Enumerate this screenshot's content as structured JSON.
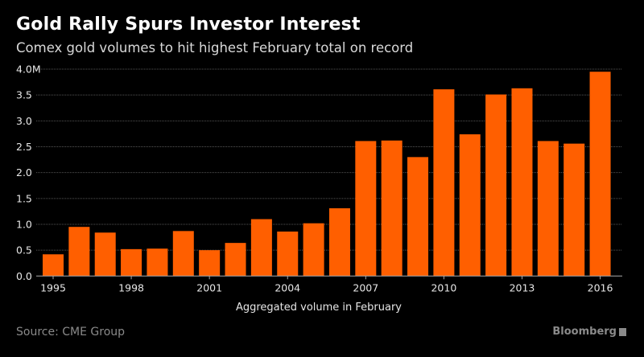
{
  "chart_data": {
    "type": "bar",
    "title": "Gold Rally Spurs Investor Interest",
    "subtitle": "Comex gold volumes to hit highest February total on record",
    "xlabel": "Aggregated volume in February",
    "ylabel": "",
    "categories": [
      "1995",
      "1996",
      "1997",
      "1998",
      "1999",
      "2000",
      "2001",
      "2002",
      "2003",
      "2004",
      "2005",
      "2006",
      "2007",
      "2008",
      "2009",
      "2010",
      "2011",
      "2012",
      "2013",
      "2014",
      "2015",
      "2016"
    ],
    "values": [
      0.42,
      0.95,
      0.84,
      0.52,
      0.53,
      0.87,
      0.5,
      0.64,
      1.1,
      0.86,
      1.02,
      1.31,
      2.61,
      2.62,
      2.3,
      3.61,
      2.74,
      3.51,
      3.63,
      2.61,
      2.56,
      3.95
    ],
    "unit": "M",
    "ylim": [
      0,
      4.0
    ],
    "yticks": [
      "0.0",
      "0.5",
      "1.0",
      "1.5",
      "2.0",
      "2.5",
      "3.0",
      "3.5",
      "4.0M"
    ],
    "xticks": [
      "1995",
      "1998",
      "2001",
      "2004",
      "2007",
      "2010",
      "2013",
      "2016"
    ],
    "grid": true,
    "bar_color": "#ff5f00"
  },
  "footer": {
    "source": "Source: CME Group",
    "brand": "Bloomberg"
  }
}
